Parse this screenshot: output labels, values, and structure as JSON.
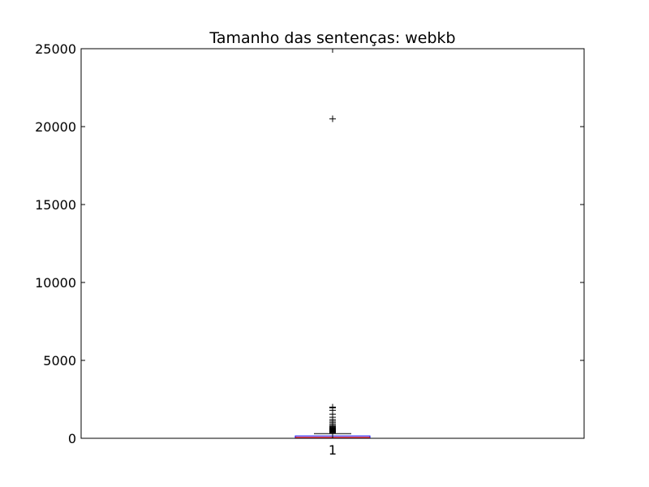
{
  "chart_data": {
    "type": "boxplot",
    "title": "Tamanho das sentenças: webkb",
    "xlabel": "",
    "ylabel": "",
    "ylim": [
      0,
      25000
    ],
    "yticks": [
      0,
      5000,
      10000,
      15000,
      20000,
      25000
    ],
    "ytick_labels": [
      "0",
      "5000",
      "10000",
      "15000",
      "20000",
      "25000"
    ],
    "xticks": [
      1
    ],
    "xtick_labels": [
      "1"
    ],
    "grid": false,
    "series": [
      {
        "position": 1,
        "q1": 20,
        "median": 60,
        "q3": 150,
        "whisker_low": 0,
        "whisker_high": 300,
        "outliers": [
          350,
          380,
          410,
          440,
          470,
          500,
          530,
          560,
          600,
          650,
          700,
          760,
          820,
          900,
          1000,
          1100,
          1200,
          1350,
          1550,
          1800,
          1950,
          2000,
          20500
        ]
      }
    ],
    "colors": {
      "box": "#0000ff",
      "median": "#ff0000",
      "whisker": "#000000",
      "outlier": "#000000"
    }
  }
}
